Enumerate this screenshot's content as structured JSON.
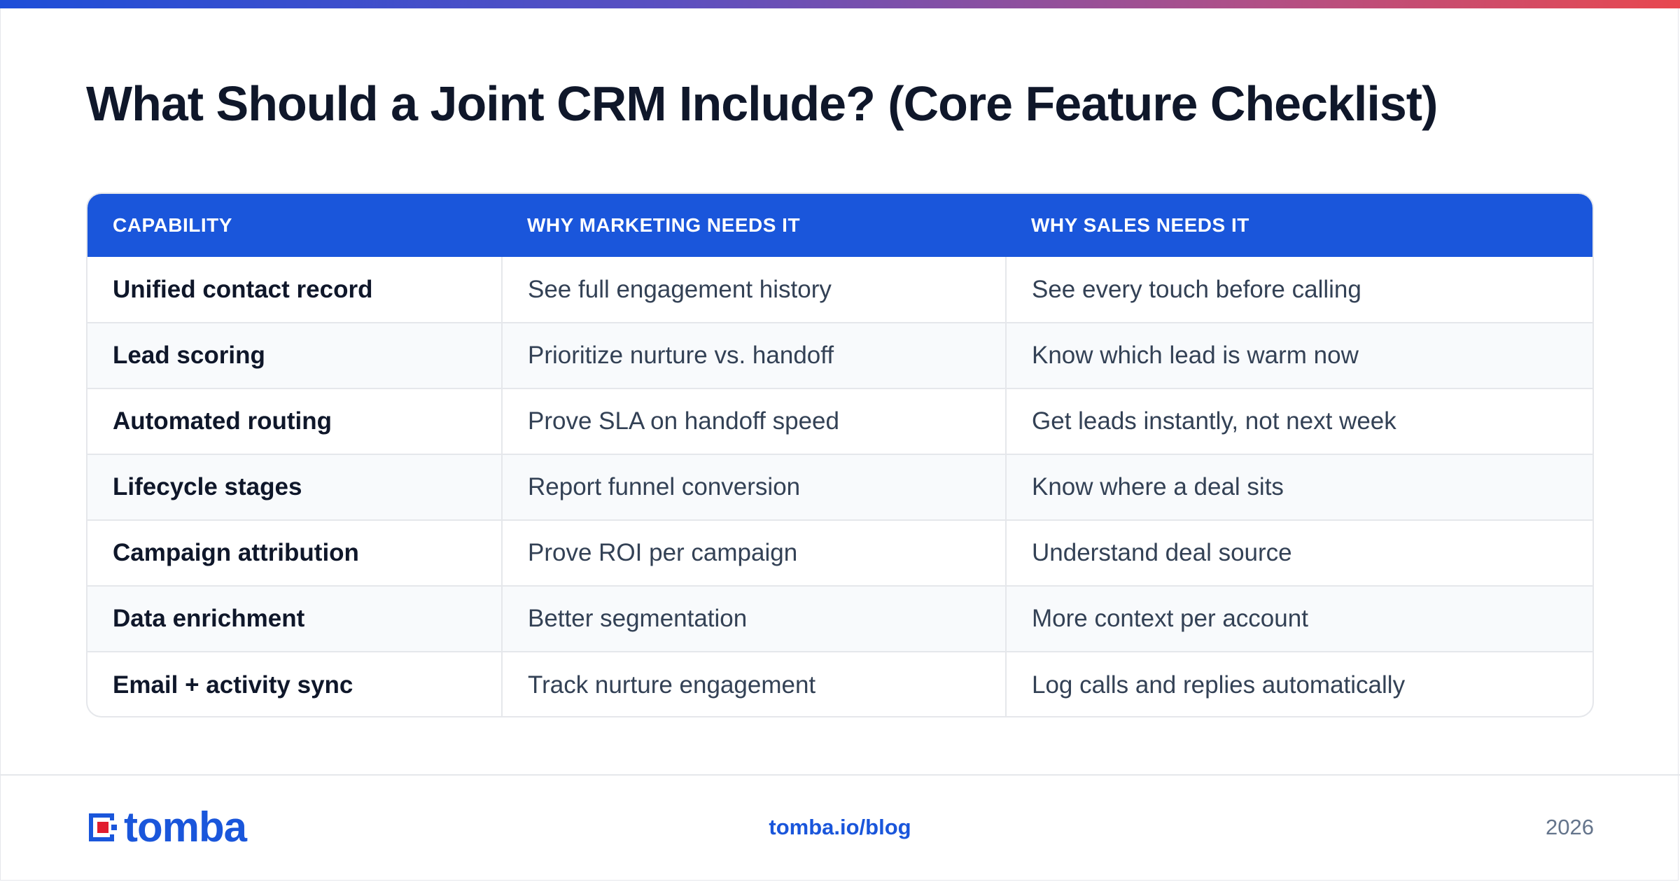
{
  "title": "What Should a Joint CRM Include? (Core Feature Checklist)",
  "table": {
    "headers": [
      "CAPABILITY",
      "WHY MARKETING NEEDS IT",
      "WHY SALES NEEDS IT"
    ],
    "rows": [
      [
        "Unified contact record",
        "See full engagement history",
        "See every touch before calling"
      ],
      [
        "Lead scoring",
        "Prioritize nurture vs. handoff",
        "Know which lead is warm now"
      ],
      [
        "Automated routing",
        "Prove SLA on handoff speed",
        "Get leads instantly, not next week"
      ],
      [
        "Lifecycle stages",
        "Report funnel conversion",
        "Know where a deal sits"
      ],
      [
        "Campaign attribution",
        "Prove ROI per campaign",
        "Understand deal source"
      ],
      [
        "Data enrichment",
        "Better segmentation",
        "More context per account"
      ],
      [
        "Email + activity sync",
        "Track nurture engagement",
        "Log calls and replies automatically"
      ]
    ]
  },
  "footer": {
    "logo_text": "tomba",
    "logo_icon": "tomba-logo-icon",
    "link": "tomba.io/blog",
    "year": "2026"
  },
  "colors": {
    "accent": "#1a56db",
    "logo_red": "#e11d2e",
    "gradient_start": "#1d4ed8",
    "gradient_end": "#e8484f"
  }
}
